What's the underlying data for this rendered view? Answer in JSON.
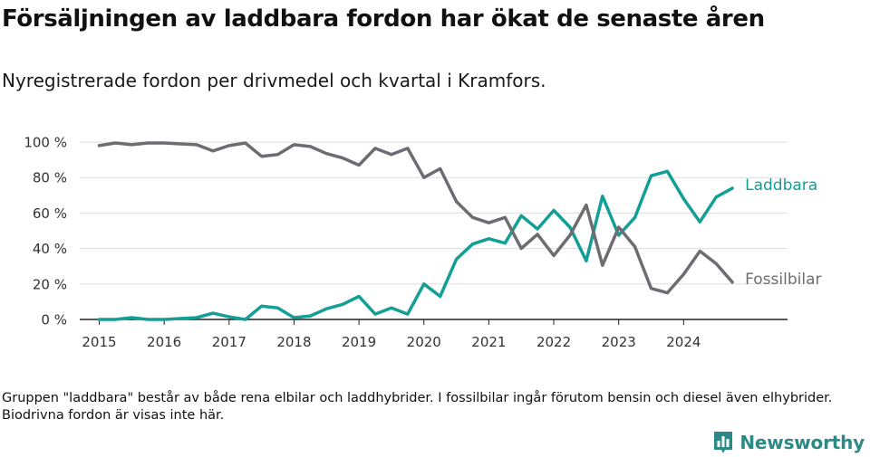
{
  "title": "Försäljningen av laddbara fordon har ökat de senaste åren",
  "subtitle": "Nyregistrerade fordon per drivmedel och kvartal i Kramfors.",
  "note": "Gruppen \"laddbara\" består av både rena elbilar och laddhybrider. I fossilbilar ingår förutom bensin och diesel även elhybrider. Biodrivna fordon är visas inte här.",
  "brand": {
    "name": "Newsworthy",
    "icon": "bar-chart-logo-icon"
  },
  "colors": {
    "laddbara": "#139e96",
    "fossil": "#6e6c72",
    "grid": "#dddddd",
    "axis": "#222222"
  },
  "chart_data": {
    "type": "line",
    "title": "Försäljningen av laddbara fordon har ökat de senaste åren",
    "xlabel": "",
    "ylabel": "",
    "ylim": [
      0,
      100
    ],
    "yticks": [
      0,
      20,
      40,
      60,
      80,
      100
    ],
    "ytick_labels": [
      "0 %",
      "20 %",
      "40 %",
      "60 %",
      "80 %",
      "100 %"
    ],
    "xticks": [
      2015,
      2016,
      2017,
      2018,
      2019,
      2020,
      2021,
      2022,
      2023,
      2024
    ],
    "xlim": [
      2014.7,
      2025.6
    ],
    "grid": true,
    "x": [
      2015.0,
      2015.25,
      2015.5,
      2015.75,
      2016.0,
      2016.25,
      2016.5,
      2016.75,
      2017.0,
      2017.25,
      2017.5,
      2017.75,
      2018.0,
      2018.25,
      2018.5,
      2018.75,
      2019.0,
      2019.25,
      2019.5,
      2019.75,
      2020.0,
      2020.25,
      2020.5,
      2020.75,
      2021.0,
      2021.25,
      2021.5,
      2021.75,
      2022.0,
      2022.25,
      2022.5,
      2022.75,
      2023.0,
      2023.25,
      2023.5,
      2023.75,
      2024.0,
      2024.25,
      2024.5,
      2024.75
    ],
    "series": [
      {
        "name": "Laddbara",
        "color": "#139e96",
        "values": [
          0,
          0,
          1,
          0,
          0,
          0.5,
          1,
          3.5,
          1.5,
          0,
          7.5,
          6.5,
          1,
          2,
          6,
          8.5,
          13,
          3,
          6.5,
          3,
          20,
          13,
          34,
          42.5,
          45.5,
          43,
          58.5,
          51,
          61.5,
          52,
          33,
          69.5,
          47.5,
          57.5,
          81,
          83.5,
          68,
          55,
          69,
          74
        ]
      },
      {
        "name": "Fossilbilar",
        "color": "#6e6c72",
        "values": [
          98,
          99.5,
          98.5,
          99.5,
          99.5,
          99,
          98.5,
          95,
          98,
          99.5,
          92,
          93,
          98.5,
          97.5,
          93.5,
          91,
          87,
          96.5,
          93,
          96.5,
          80,
          85,
          66.5,
          57.5,
          54.5,
          57.5,
          40,
          48,
          36,
          47.5,
          64.5,
          30.5,
          52,
          41,
          17.5,
          15,
          25.5,
          38.5,
          31.5,
          21
        ]
      }
    ]
  }
}
